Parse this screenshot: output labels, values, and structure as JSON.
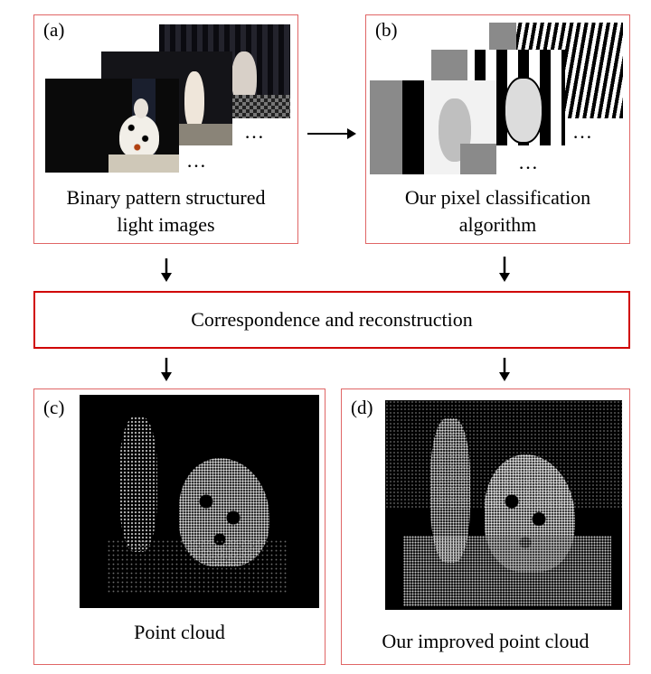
{
  "panels": {
    "a": {
      "tag": "(a)",
      "caption_line1": "Binary pattern structured",
      "caption_line2": "light images",
      "ellipsis": "…"
    },
    "b": {
      "tag": "(b)",
      "caption_line1": "Our pixel classification",
      "caption_line2": "algorithm",
      "ellipsis": "…"
    },
    "c": {
      "tag": "(c)",
      "caption": "Point cloud"
    },
    "d": {
      "tag": "(d)",
      "caption": "Our improved point cloud"
    }
  },
  "process_bar": {
    "label": "Correspondence and reconstruction"
  },
  "colors": {
    "panel_border": "#e06666",
    "bar_border": "#d00000",
    "arrow": "#000000"
  },
  "icons": {
    "arrow_right": "arrow-right-icon",
    "arrow_down": "arrow-down-icon"
  }
}
